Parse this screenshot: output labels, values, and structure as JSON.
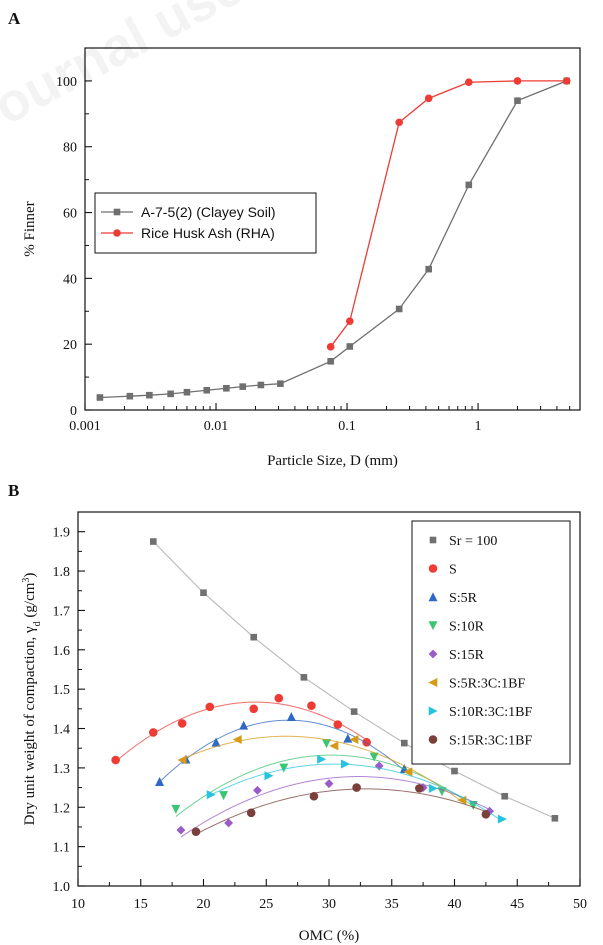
{
  "chart_data": [
    {
      "panel_label": "A",
      "type": "line",
      "xlabel": "Particle Size, D (mm)",
      "ylabel": "% Finner",
      "xscale": "log",
      "xlim": [
        0.001,
        6
      ],
      "ylim": [
        0,
        110
      ],
      "xticks": [
        {
          "value": 0.001,
          "label": "0.001"
        },
        {
          "value": 0.01,
          "label": "0.01"
        },
        {
          "value": 0.1,
          "label": "0.1"
        },
        {
          "value": 1,
          "label": "1"
        }
      ],
      "yticks": [
        {
          "value": 0,
          "label": "0"
        },
        {
          "value": 20,
          "label": "20"
        },
        {
          "value": 40,
          "label": "40"
        },
        {
          "value": 60,
          "label": "60"
        },
        {
          "value": 80,
          "label": "80"
        },
        {
          "value": 100,
          "label": "100"
        }
      ],
      "legend_position": "middle-left",
      "grid": false,
      "series": [
        {
          "name": "A-7-5(2) (Clayey Soil)",
          "marker": "square",
          "color": "#6f6f6f",
          "x": [
            0.0013,
            0.0022,
            0.0031,
            0.0045,
            0.006,
            0.0085,
            0.012,
            0.016,
            0.022,
            0.031,
            0.075,
            0.105,
            0.25,
            0.42,
            0.85,
            2.0,
            4.75
          ],
          "y": [
            3.8,
            4.2,
            4.5,
            4.9,
            5.4,
            6.0,
            6.6,
            7.1,
            7.6,
            8.0,
            14.8,
            19.3,
            30.7,
            42.8,
            68.4,
            94.0,
            100.0
          ]
        },
        {
          "name": "Rice Husk Ash (RHA)",
          "marker": "circle",
          "color": "#ee3b33",
          "x": [
            0.075,
            0.105,
            0.25,
            0.42,
            0.85,
            2.0,
            4.75
          ],
          "y": [
            19.2,
            27.0,
            87.4,
            94.7,
            99.6,
            100.0,
            100.0
          ]
        }
      ]
    },
    {
      "panel_label": "B",
      "type": "scatter",
      "xlabel": "OMC (%)",
      "ylabel": "Dry unit weight of compaction, γ",
      "ylabel_subscript": "d",
      "ylabel_units_prefix": " (g/cm",
      "ylabel_units_power": "3",
      "ylabel_units_suffix": ")",
      "xlim": [
        10,
        50
      ],
      "ylim": [
        1.0,
        1.95
      ],
      "xticks": [
        {
          "value": 10,
          "label": "10"
        },
        {
          "value": 15,
          "label": "15"
        },
        {
          "value": 20,
          "label": "20"
        },
        {
          "value": 25,
          "label": "25"
        },
        {
          "value": 30,
          "label": "30"
        },
        {
          "value": 35,
          "label": "35"
        },
        {
          "value": 40,
          "label": "40"
        },
        {
          "value": 45,
          "label": "45"
        },
        {
          "value": 50,
          "label": "50"
        }
      ],
      "yticks": [
        {
          "value": 1.0,
          "label": "1.0"
        },
        {
          "value": 1.1,
          "label": "1.1"
        },
        {
          "value": 1.2,
          "label": "1.2"
        },
        {
          "value": 1.3,
          "label": "1.3"
        },
        {
          "value": 1.4,
          "label": "1.4"
        },
        {
          "value": 1.5,
          "label": "1.5"
        },
        {
          "value": 1.6,
          "label": "1.6"
        },
        {
          "value": 1.7,
          "label": "1.7"
        },
        {
          "value": 1.8,
          "label": "1.8"
        },
        {
          "value": 1.9,
          "label": "1.9"
        }
      ],
      "legend_position": "top-right",
      "grid": false,
      "series": [
        {
          "name": "Sr = 100",
          "marker": "square",
          "color": "#707070",
          "line": "straight",
          "x": [
            16.0,
            20.0,
            24.0,
            28.0,
            32.0,
            36.0,
            40.0,
            44.0,
            48.0
          ],
          "y": [
            1.875,
            1.745,
            1.632,
            1.53,
            1.443,
            1.363,
            1.292,
            1.228,
            1.172
          ]
        },
        {
          "name": "S",
          "marker": "circle",
          "color": "#ee3b33",
          "line": "curve",
          "x": [
            13.0,
            16.0,
            18.3,
            20.5,
            24.0,
            26.0,
            28.6,
            30.7,
            33.0
          ],
          "y": [
            1.32,
            1.39,
            1.413,
            1.455,
            1.45,
            1.477,
            1.458,
            1.41,
            1.365
          ]
        },
        {
          "name": "S:5R",
          "marker": "triangle-up",
          "color": "#2f68c6",
          "line": "curve",
          "x": [
            16.5,
            18.6,
            21.0,
            23.2,
            27.0,
            31.5,
            36.0
          ],
          "y": [
            1.265,
            1.322,
            1.365,
            1.408,
            1.43,
            1.375,
            1.298
          ]
        },
        {
          "name": "S:10R",
          "marker": "triangle-down",
          "color": "#3bc572",
          "line": "curve",
          "x": [
            17.8,
            21.6,
            26.4,
            29.8,
            33.6,
            39.0,
            41.5
          ],
          "y": [
            1.195,
            1.23,
            1.3,
            1.362,
            1.328,
            1.24,
            1.205
          ]
        },
        {
          "name": "S:15R",
          "marker": "diamond",
          "color": "#9a5cc8",
          "line": "curve",
          "x": [
            18.2,
            22.0,
            24.3,
            30.0,
            34.0,
            37.5,
            42.8
          ],
          "y": [
            1.142,
            1.16,
            1.243,
            1.26,
            1.305,
            1.25,
            1.19
          ]
        },
        {
          "name": "S:5R:3C:1BF",
          "marker": "triangle-left",
          "color": "#d69a16",
          "line": "curve",
          "x": [
            18.3,
            22.7,
            30.4,
            32.0,
            36.3,
            40.6
          ],
          "y": [
            1.32,
            1.372,
            1.356,
            1.372,
            1.29,
            1.218
          ]
        },
        {
          "name": "S:10R:3C:1BF",
          "marker": "triangle-right",
          "color": "#25c4dc",
          "line": "curve",
          "x": [
            20.6,
            25.2,
            29.4,
            31.3,
            38.3,
            43.8
          ],
          "y": [
            1.232,
            1.28,
            1.322,
            1.31,
            1.248,
            1.17
          ]
        },
        {
          "name": "S:15R:3C:1BF",
          "marker": "circle",
          "color": "#7a3f3b",
          "line": "curve",
          "x": [
            19.4,
            23.8,
            28.8,
            32.2,
            37.2,
            42.5
          ],
          "y": [
            1.138,
            1.186,
            1.228,
            1.25,
            1.248,
            1.182
          ]
        }
      ]
    }
  ],
  "watermark": {
    "text": "Journal use"
  }
}
